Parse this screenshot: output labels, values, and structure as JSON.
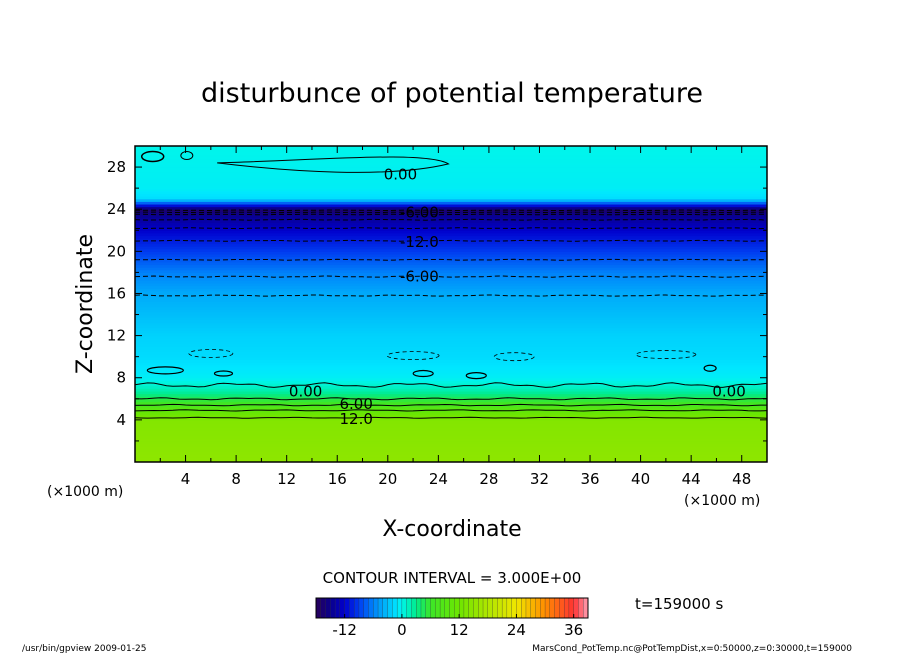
{
  "chart_data": {
    "type": "heatmap",
    "title": "disturbunce of potential temperature",
    "xlabel": "X-coordinate",
    "ylabel": "Z-coordinate",
    "x_unit_left": "(×1000 m)",
    "x_unit_right": "(×1000 m)",
    "xlim": [
      0,
      50
    ],
    "ylim": [
      0,
      30
    ],
    "x_ticks": [
      4,
      8,
      12,
      16,
      20,
      24,
      28,
      32,
      36,
      40,
      44,
      48
    ],
    "y_ticks": [
      4,
      8,
      12,
      16,
      20,
      24,
      28
    ],
    "contour_interval_label": "CONTOUR INTERVAL = 3.000E+00",
    "time_label": "t=159000 s",
    "colorbar": {
      "min": -18,
      "max": 39,
      "ticks": [
        -12,
        0,
        12,
        24,
        36
      ]
    },
    "profile_z": [
      0,
      4,
      4.5,
      5,
      5.5,
      6,
      6.5,
      7,
      7.5,
      8,
      9,
      10,
      12,
      14,
      16,
      18,
      20,
      22,
      23.5,
      24,
      25,
      26,
      30
    ],
    "profile_value": [
      15,
      14,
      12,
      10,
      7,
      5,
      3,
      1.5,
      0.5,
      -0.5,
      -1,
      -1.5,
      -2,
      -3,
      -4,
      -6,
      -9,
      -12,
      -15,
      -17,
      -1.5,
      -0.5,
      0
    ],
    "contour_labels": [
      {
        "text": "0.00",
        "x": 21,
        "z": 27.3
      },
      {
        "text": "-6.00",
        "x": 22.5,
        "z": 23.7
      },
      {
        "text": "-12.0",
        "x": 22.5,
        "z": 20.9
      },
      {
        "text": "-6.00",
        "x": 22.5,
        "z": 17.6
      },
      {
        "text": "0.00",
        "x": 13.5,
        "z": 6.7
      },
      {
        "text": "0.00",
        "x": 47,
        "z": 6.7
      },
      {
        "text": "6.00",
        "x": 17.5,
        "z": 5.5
      },
      {
        "text": "12.0",
        "x": 17.5,
        "z": 4.1
      }
    ]
  },
  "footer": {
    "left": "/usr/bin/gpview  2009-01-25",
    "right": "MarsCond_PotTemp.nc@PotTempDist,x=0:50000,z=0:30000,t=159000"
  }
}
